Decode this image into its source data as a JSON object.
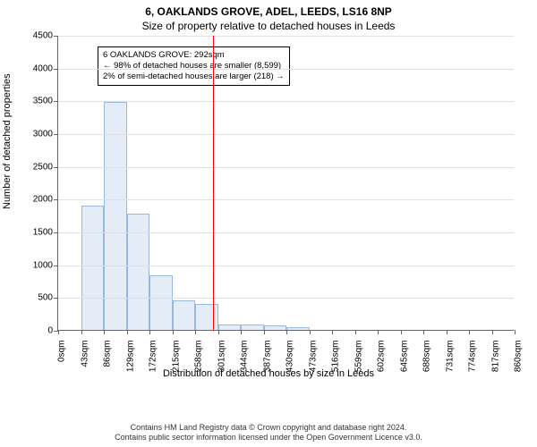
{
  "chart": {
    "type": "histogram",
    "title_line1": "6, OAKLANDS GROVE, ADEL, LEEDS, LS16 8NP",
    "title_line2": "Size of property relative to detached houses in Leeds",
    "title_fontsize": 12,
    "ylabel": "Number of detached properties",
    "xlabel": "Distribution of detached houses by size in Leeds",
    "label_fontsize": 11,
    "tick_fontsize": 10,
    "background_color": "#ffffff",
    "grid_color": "#e0e0e0",
    "axis_color": "#666666",
    "bar_fill": "#e3ecf7",
    "bar_border": "#99b8dd",
    "ylim_max": 4500,
    "ytick_step": 500,
    "yticks": [
      0,
      500,
      1000,
      1500,
      2000,
      2500,
      3000,
      3500,
      4000,
      4500
    ],
    "xticks": [
      "0sqm",
      "43sqm",
      "86sqm",
      "129sqm",
      "172sqm",
      "215sqm",
      "258sqm",
      "301sqm",
      "344sqm",
      "387sqm",
      "430sqm",
      "473sqm",
      "516sqm",
      "559sqm",
      "602sqm",
      "645sqm",
      "688sqm",
      "731sqm",
      "774sqm",
      "817sqm",
      "860sqm"
    ],
    "xmax_sqm": 860,
    "values": [
      0,
      1900,
      3480,
      1770,
      830,
      450,
      400,
      80,
      80,
      70,
      40,
      0,
      0,
      0,
      0,
      0,
      0,
      0,
      0,
      0
    ],
    "reference_line_sqm": 292,
    "reference_line_color": "#ff0000",
    "annotation": {
      "line1": "6 OAKLANDS GROVE: 292sqm",
      "line2": "← 98% of detached houses are smaller (8,599)",
      "line3": "2% of semi-detached houses are larger (218) →",
      "fontsize": 9.5,
      "border_color": "#000000",
      "bg_color": "#ffffff"
    }
  },
  "footer": {
    "line1": "Contains HM Land Registry data © Crown copyright and database right 2024.",
    "line2": "Contains public sector information licensed under the Open Government Licence v3.0."
  }
}
